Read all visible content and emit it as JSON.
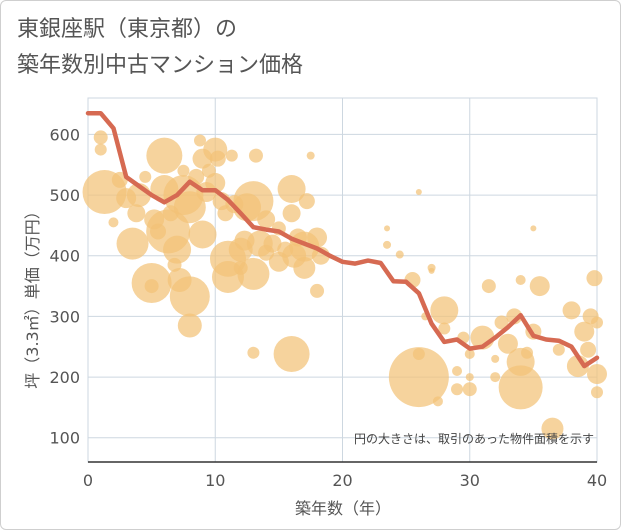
{
  "title_line1": "東銀座駅（東京都）の",
  "title_line2": "築年数別中古マンション価格",
  "chart_data": {
    "type": "scatter",
    "xlabel": "築年数（年）",
    "ylabel": "坪（3.3㎡）単価（万円）",
    "xlim": [
      0,
      40
    ],
    "ylim": [
      60,
      660
    ],
    "xticks": [
      0,
      10,
      20,
      30,
      40
    ],
    "yticks": [
      100,
      200,
      300,
      400,
      500,
      600
    ],
    "grid": true,
    "annotation": "円の大きさは、取引のあった物件面積を示す",
    "colors": {
      "bubble": "#f3c277",
      "line": "#d66a52",
      "grid": "#cdd7e0"
    },
    "line": {
      "name": "",
      "x": [
        0,
        1,
        2,
        3,
        4,
        5,
        6,
        7,
        8,
        9,
        10,
        11,
        12,
        13,
        14,
        15,
        16,
        17,
        18,
        19,
        20,
        21,
        22,
        23,
        24,
        25,
        26,
        27,
        28,
        29,
        30,
        31,
        32,
        33,
        34,
        35,
        36,
        37,
        38,
        39,
        40
      ],
      "y": [
        635,
        635,
        610,
        530,
        515,
        500,
        488,
        500,
        522,
        508,
        508,
        492,
        470,
        447,
        443,
        440,
        428,
        420,
        412,
        400,
        390,
        387,
        392,
        388,
        358,
        357,
        338,
        288,
        258,
        262,
        247,
        250,
        265,
        282,
        302,
        268,
        262,
        260,
        250,
        218,
        232
      ]
    },
    "points": [
      {
        "x": 1,
        "y": 575,
        "r": 6
      },
      {
        "x": 1,
        "y": 595,
        "r": 7
      },
      {
        "x": 1.3,
        "y": 505,
        "r": 22
      },
      {
        "x": 2,
        "y": 455,
        "r": 5
      },
      {
        "x": 2.5,
        "y": 525,
        "r": 8
      },
      {
        "x": 3,
        "y": 495,
        "r": 10
      },
      {
        "x": 3.5,
        "y": 420,
        "r": 16
      },
      {
        "x": 3.8,
        "y": 470,
        "r": 9
      },
      {
        "x": 4,
        "y": 500,
        "r": 12
      },
      {
        "x": 4.5,
        "y": 530,
        "r": 6
      },
      {
        "x": 5,
        "y": 355,
        "r": 20
      },
      {
        "x": 5,
        "y": 350,
        "r": 7
      },
      {
        "x": 5.2,
        "y": 460,
        "r": 10
      },
      {
        "x": 5.5,
        "y": 440,
        "r": 8
      },
      {
        "x": 6,
        "y": 565,
        "r": 18
      },
      {
        "x": 6,
        "y": 510,
        "r": 14
      },
      {
        "x": 6.3,
        "y": 440,
        "r": 22
      },
      {
        "x": 6.5,
        "y": 470,
        "r": 8
      },
      {
        "x": 6.8,
        "y": 385,
        "r": 7
      },
      {
        "x": 7,
        "y": 410,
        "r": 14
      },
      {
        "x": 7.2,
        "y": 360,
        "r": 12
      },
      {
        "x": 7.5,
        "y": 500,
        "r": 20
      },
      {
        "x": 7.5,
        "y": 540,
        "r": 6
      },
      {
        "x": 8,
        "y": 333,
        "r": 20
      },
      {
        "x": 8,
        "y": 285,
        "r": 12
      },
      {
        "x": 8,
        "y": 480,
        "r": 16
      },
      {
        "x": 8.5,
        "y": 530,
        "r": 8
      },
      {
        "x": 8.8,
        "y": 590,
        "r": 6
      },
      {
        "x": 9,
        "y": 560,
        "r": 10
      },
      {
        "x": 9,
        "y": 435,
        "r": 14
      },
      {
        "x": 9.3,
        "y": 505,
        "r": 10
      },
      {
        "x": 9.5,
        "y": 540,
        "r": 7
      },
      {
        "x": 10,
        "y": 575,
        "r": 12
      },
      {
        "x": 10,
        "y": 520,
        "r": 10
      },
      {
        "x": 10.2,
        "y": 560,
        "r": 8
      },
      {
        "x": 10.5,
        "y": 490,
        "r": 9
      },
      {
        "x": 10.8,
        "y": 470,
        "r": 8
      },
      {
        "x": 11,
        "y": 395,
        "r": 18
      },
      {
        "x": 11,
        "y": 365,
        "r": 16
      },
      {
        "x": 11.3,
        "y": 565,
        "r": 6
      },
      {
        "x": 11.5,
        "y": 485,
        "r": 9
      },
      {
        "x": 12,
        "y": 410,
        "r": 12
      },
      {
        "x": 12,
        "y": 380,
        "r": 7
      },
      {
        "x": 12.3,
        "y": 425,
        "r": 10
      },
      {
        "x": 12.5,
        "y": 480,
        "r": 14
      },
      {
        "x": 13,
        "y": 370,
        "r": 16
      },
      {
        "x": 13,
        "y": 490,
        "r": 20
      },
      {
        "x": 13,
        "y": 240,
        "r": 6
      },
      {
        "x": 13.2,
        "y": 565,
        "r": 7
      },
      {
        "x": 13.5,
        "y": 420,
        "r": 13
      },
      {
        "x": 14,
        "y": 460,
        "r": 9
      },
      {
        "x": 14,
        "y": 405,
        "r": 8
      },
      {
        "x": 14.5,
        "y": 420,
        "r": 9
      },
      {
        "x": 15,
        "y": 390,
        "r": 10
      },
      {
        "x": 15,
        "y": 445,
        "r": 7
      },
      {
        "x": 15.5,
        "y": 410,
        "r": 8
      },
      {
        "x": 16,
        "y": 238,
        "r": 18
      },
      {
        "x": 16,
        "y": 510,
        "r": 14
      },
      {
        "x": 16,
        "y": 470,
        "r": 9
      },
      {
        "x": 16.2,
        "y": 400,
        "r": 12
      },
      {
        "x": 16.5,
        "y": 430,
        "r": 9
      },
      {
        "x": 17,
        "y": 380,
        "r": 11
      },
      {
        "x": 17,
        "y": 415,
        "r": 15
      },
      {
        "x": 17.2,
        "y": 490,
        "r": 8
      },
      {
        "x": 17.5,
        "y": 565,
        "r": 4
      },
      {
        "x": 18,
        "y": 430,
        "r": 10
      },
      {
        "x": 18,
        "y": 342,
        "r": 7
      },
      {
        "x": 18.3,
        "y": 400,
        "r": 9
      },
      {
        "x": 23.5,
        "y": 445,
        "r": 3
      },
      {
        "x": 23.5,
        "y": 418,
        "r": 4
      },
      {
        "x": 24.5,
        "y": 402,
        "r": 4
      },
      {
        "x": 25.5,
        "y": 360,
        "r": 8
      },
      {
        "x": 26,
        "y": 200,
        "r": 30
      },
      {
        "x": 26,
        "y": 505,
        "r": 3
      },
      {
        "x": 26,
        "y": 238,
        "r": 6
      },
      {
        "x": 26.5,
        "y": 300,
        "r": 4
      },
      {
        "x": 27,
        "y": 380,
        "r": 4
      },
      {
        "x": 27,
        "y": 375,
        "r": 3
      },
      {
        "x": 27.5,
        "y": 160,
        "r": 5
      },
      {
        "x": 28,
        "y": 310,
        "r": 14
      },
      {
        "x": 28,
        "y": 280,
        "r": 6
      },
      {
        "x": 29,
        "y": 180,
        "r": 6
      },
      {
        "x": 29,
        "y": 210,
        "r": 5
      },
      {
        "x": 29.5,
        "y": 265,
        "r": 6
      },
      {
        "x": 30,
        "y": 180,
        "r": 7
      },
      {
        "x": 30,
        "y": 200,
        "r": 4
      },
      {
        "x": 30,
        "y": 238,
        "r": 5
      },
      {
        "x": 31,
        "y": 265,
        "r": 12
      },
      {
        "x": 31.5,
        "y": 350,
        "r": 7
      },
      {
        "x": 32,
        "y": 200,
        "r": 5
      },
      {
        "x": 32,
        "y": 230,
        "r": 4
      },
      {
        "x": 32.5,
        "y": 290,
        "r": 7
      },
      {
        "x": 33,
        "y": 255,
        "r": 10
      },
      {
        "x": 33.5,
        "y": 300,
        "r": 8
      },
      {
        "x": 34,
        "y": 183,
        "r": 22
      },
      {
        "x": 34,
        "y": 225,
        "r": 14
      },
      {
        "x": 34,
        "y": 360,
        "r": 5
      },
      {
        "x": 34.5,
        "y": 240,
        "r": 6
      },
      {
        "x": 35,
        "y": 445,
        "r": 3
      },
      {
        "x": 35,
        "y": 275,
        "r": 8
      },
      {
        "x": 35.5,
        "y": 350,
        "r": 10
      },
      {
        "x": 36.5,
        "y": 115,
        "r": 11
      },
      {
        "x": 37,
        "y": 245,
        "r": 6
      },
      {
        "x": 38,
        "y": 310,
        "r": 9
      },
      {
        "x": 38.5,
        "y": 218,
        "r": 11
      },
      {
        "x": 39,
        "y": 275,
        "r": 10
      },
      {
        "x": 39.3,
        "y": 245,
        "r": 8
      },
      {
        "x": 39.5,
        "y": 300,
        "r": 8
      },
      {
        "x": 39.8,
        "y": 363,
        "r": 8
      },
      {
        "x": 40,
        "y": 205,
        "r": 10
      },
      {
        "x": 40,
        "y": 175,
        "r": 6
      },
      {
        "x": 40,
        "y": 290,
        "r": 6
      }
    ]
  }
}
